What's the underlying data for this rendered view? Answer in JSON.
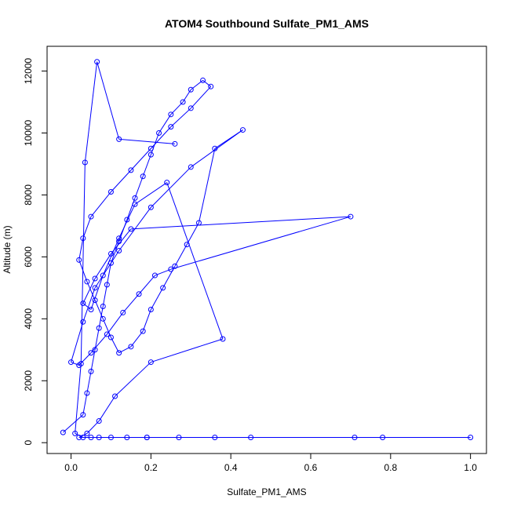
{
  "chart_data": {
    "type": "line",
    "title": "ATOM4 Southbound Sulfate_PM1_AMS",
    "xlabel": "Sulfate_PM1_AMS",
    "ylabel": "Altitude (m)",
    "xlim": [
      -0.06,
      1.04
    ],
    "ylim": [
      -350,
      12800
    ],
    "xticks": [
      0.0,
      0.2,
      0.4,
      0.6,
      0.8,
      1.0
    ],
    "xtick_labels": [
      "0.0",
      "0.2",
      "0.4",
      "0.6",
      "0.8",
      "1.0"
    ],
    "yticks": [
      0,
      2000,
      4000,
      6000,
      8000,
      10000,
      12000
    ],
    "ytick_labels": [
      "0",
      "2000",
      "4000",
      "6000",
      "8000",
      "10000",
      "12000"
    ],
    "grid": false,
    "line_color": "#0000ff",
    "marker": "open-circle",
    "series": [
      {
        "x": [
          -0.02,
          0.03,
          0.04,
          0.05,
          0.06,
          0.07,
          0.08,
          0.09,
          0.1,
          0.12,
          0.14,
          0.16,
          0.18,
          0.2,
          0.22,
          0.25,
          0.28,
          0.3,
          0.33,
          0.35,
          0.3,
          0.25,
          0.2,
          0.15,
          0.1,
          0.05,
          0.03,
          0.02,
          0.04,
          0.06,
          0.08,
          0.1,
          0.12,
          0.15,
          0.18,
          0.2,
          0.23,
          0.26,
          0.29,
          0.32,
          0.36,
          0.43,
          0.3,
          0.2,
          0.12,
          0.06,
          0.03,
          0.0,
          0.02,
          0.05,
          0.09,
          0.13,
          0.17,
          0.21,
          0.25,
          0.7,
          0.15,
          0.1,
          0.06,
          0.03,
          0.05,
          0.08,
          0.12,
          0.16,
          0.24,
          0.38,
          0.2,
          0.11,
          0.07,
          0.04,
          0.02,
          0.05,
          0.1,
          0.14,
          0.19,
          0.27,
          0.45,
          0.71,
          1.0,
          0.78,
          0.36,
          0.19,
          0.07,
          0.03,
          0.01,
          0.025,
          0.035,
          0.065,
          0.12,
          0.26
        ],
        "y": [
          330,
          900,
          1600,
          2300,
          3000,
          3700,
          4400,
          5100,
          5800,
          6500,
          7200,
          7900,
          8600,
          9300,
          10000,
          10600,
          11000,
          11400,
          11700,
          11500,
          10800,
          10200,
          9500,
          8800,
          8100,
          7300,
          6600,
          5900,
          5200,
          4600,
          4000,
          3400,
          2900,
          3100,
          3600,
          4300,
          5000,
          5700,
          6400,
          7100,
          9500,
          10100,
          8900,
          7600,
          6200,
          5000,
          3900,
          2600,
          2500,
          2900,
          3500,
          4200,
          4800,
          5400,
          5600,
          7300,
          6900,
          6100,
          5300,
          4500,
          4300,
          5400,
          6600,
          7700,
          8400,
          3350,
          2600,
          1500,
          700,
          300,
          170,
          170,
          170,
          170,
          170,
          170,
          170,
          170,
          170,
          170,
          170,
          170,
          170,
          170,
          300,
          2550,
          9050,
          12300,
          9800,
          9650
        ]
      }
    ]
  }
}
